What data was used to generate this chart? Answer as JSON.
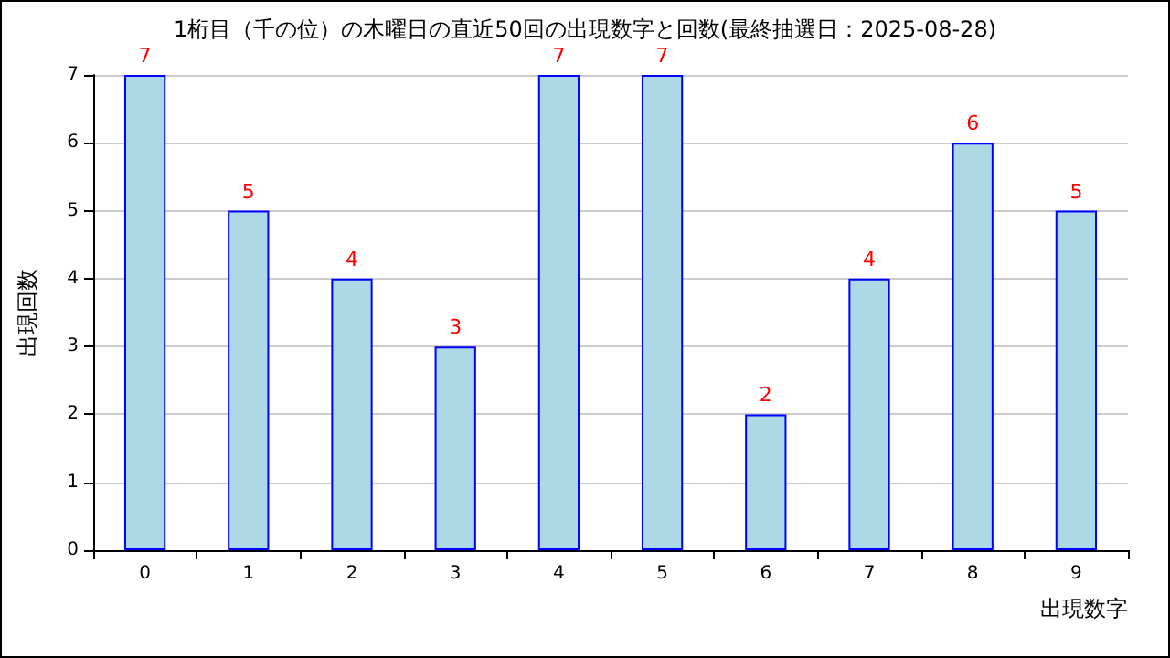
{
  "chart_data": {
    "type": "bar",
    "title": "1桁目（千の位）の木曜日の直近50回の出現数字と回数(最終抽選日：2025-08-28)",
    "xlabel": "出現数字",
    "ylabel": "出現回数",
    "categories": [
      "0",
      "1",
      "2",
      "3",
      "4",
      "5",
      "6",
      "7",
      "8",
      "9"
    ],
    "series": [
      {
        "color": "#add8e6",
        "values": [
          7,
          5,
          4,
          3,
          7,
          7,
          2,
          4,
          6,
          5
        ]
      }
    ],
    "ylim": [
      0,
      7
    ],
    "yticks": [
      0,
      1,
      2,
      3,
      4,
      5,
      6,
      7
    ],
    "grid": "y",
    "data_labels": true
  }
}
